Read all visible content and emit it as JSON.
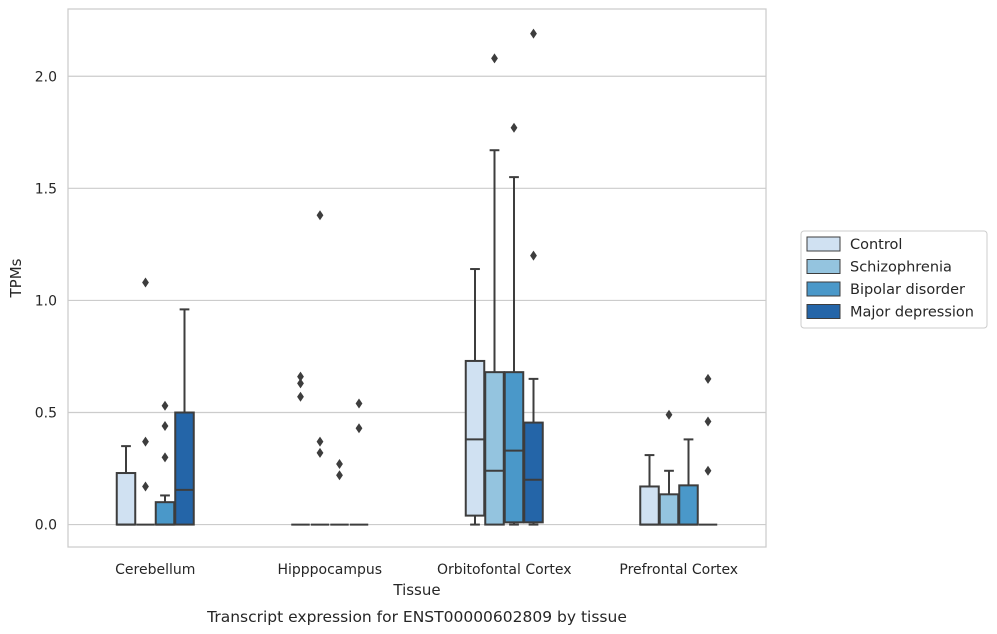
{
  "caption": "Transcript expression for ENST00000602809 by tissue",
  "chart_data": {
    "type": "boxplot",
    "xlabel": "Tissue",
    "ylabel": "TPMs",
    "ylim": [
      -0.1,
      2.3
    ],
    "yticks": [
      0.0,
      0.5,
      1.0,
      1.5,
      2.0
    ],
    "ytick_labels": [
      "0.0",
      "0.5",
      "1.0",
      "1.5",
      "2.0"
    ],
    "grid": true,
    "legend_position": "right",
    "categories": [
      "Cerebellum",
      "Hipppocampus",
      "Orbitofontal Cortex",
      "Prefrontal Cortex"
    ],
    "series": [
      {
        "name": "Control",
        "color": "#d0e1f2",
        "boxes": [
          {
            "min": 0.0,
            "q1": 0.0,
            "median": 0.0,
            "q3": 0.23,
            "max": 0.35,
            "outliers": []
          },
          {
            "min": 0.0,
            "q1": 0.0,
            "median": 0.0,
            "q3": 0.0,
            "max": 0.0,
            "outliers": [
              0.57,
              0.63,
              0.66
            ]
          },
          {
            "min": 0.0,
            "q1": 0.04,
            "median": 0.38,
            "q3": 0.73,
            "max": 1.14,
            "outliers": []
          },
          {
            "min": 0.0,
            "q1": 0.0,
            "median": 0.0,
            "q3": 0.17,
            "max": 0.31,
            "outliers": []
          }
        ]
      },
      {
        "name": "Schizophrenia",
        "color": "#94c4df",
        "boxes": [
          {
            "min": 0.0,
            "q1": 0.0,
            "median": 0.0,
            "q3": 0.0,
            "max": 0.0,
            "outliers": [
              0.17,
              0.37,
              1.08
            ]
          },
          {
            "min": 0.0,
            "q1": 0.0,
            "median": 0.0,
            "q3": 0.0,
            "max": 0.0,
            "outliers": [
              0.32,
              0.37,
              1.38
            ]
          },
          {
            "min": 0.0,
            "q1": 0.0,
            "median": 0.24,
            "q3": 0.68,
            "max": 1.67,
            "outliers": [
              2.08
            ]
          },
          {
            "min": 0.0,
            "q1": 0.0,
            "median": 0.0,
            "q3": 0.135,
            "max": 0.24,
            "outliers": [
              0.49
            ]
          }
        ]
      },
      {
        "name": "Bipolar disorder",
        "color": "#4a98c9",
        "boxes": [
          {
            "min": 0.0,
            "q1": 0.0,
            "median": 0.0,
            "q3": 0.1,
            "max": 0.13,
            "outliers": [
              0.3,
              0.44,
              0.53
            ]
          },
          {
            "min": 0.0,
            "q1": 0.0,
            "median": 0.0,
            "q3": 0.0,
            "max": 0.0,
            "outliers": [
              0.22,
              0.27
            ]
          },
          {
            "min": 0.0,
            "q1": 0.01,
            "median": 0.33,
            "q3": 0.68,
            "max": 1.55,
            "outliers": [
              1.77
            ]
          },
          {
            "min": 0.0,
            "q1": 0.0,
            "median": 0.0,
            "q3": 0.175,
            "max": 0.38,
            "outliers": []
          }
        ]
      },
      {
        "name": "Major depression",
        "color": "#2465a8",
        "boxes": [
          {
            "min": 0.0,
            "q1": 0.0,
            "median": 0.155,
            "q3": 0.5,
            "max": 0.96,
            "outliers": []
          },
          {
            "min": 0.0,
            "q1": 0.0,
            "median": 0.0,
            "q3": 0.0,
            "max": 0.0,
            "outliers": [
              0.43,
              0.54
            ]
          },
          {
            "min": 0.0,
            "q1": 0.01,
            "median": 0.2,
            "q3": 0.455,
            "max": 0.65,
            "outliers": [
              1.2,
              2.19
            ]
          },
          {
            "min": 0.0,
            "q1": 0.0,
            "median": 0.0,
            "q3": 0.0,
            "max": 0.0,
            "outliers": [
              0.24,
              0.46,
              0.65
            ]
          }
        ]
      }
    ]
  }
}
